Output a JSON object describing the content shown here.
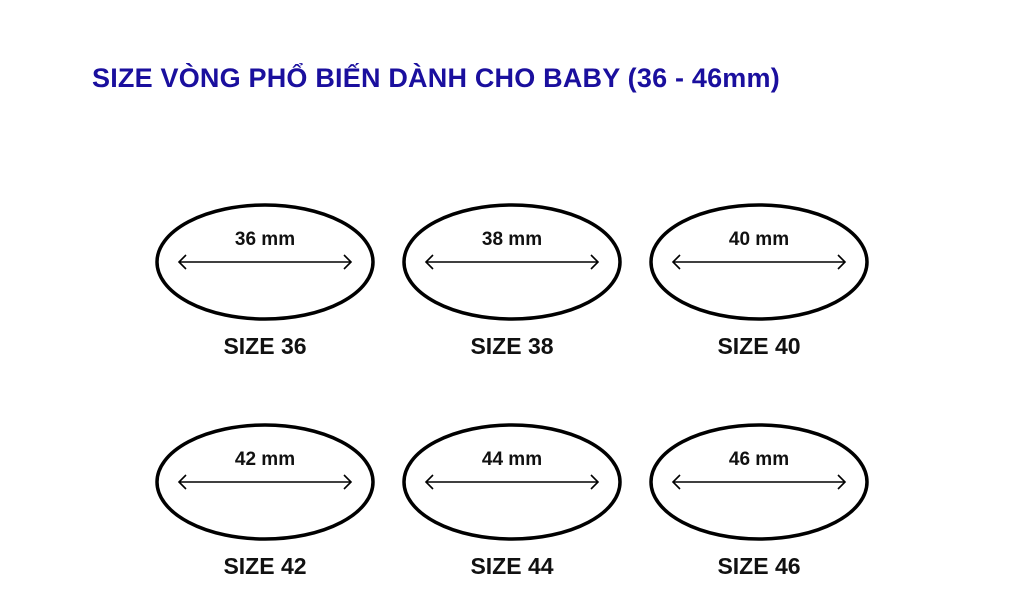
{
  "title": "SIZE VÒNG PHỔ BIẾN DÀNH CHO BABY (36 - 46mm)",
  "colors": {
    "title": "#1a0f9e",
    "stroke": "#000000"
  },
  "rings": [
    {
      "measure": "36 mm",
      "label": "SIZE 36"
    },
    {
      "measure": "38 mm",
      "label": "SIZE 38"
    },
    {
      "measure": "40 mm",
      "label": "SIZE 40"
    },
    {
      "measure": "42 mm",
      "label": "SIZE 42"
    },
    {
      "measure": "44 mm",
      "label": "SIZE 44"
    },
    {
      "measure": "46 mm",
      "label": "SIZE 46"
    }
  ]
}
